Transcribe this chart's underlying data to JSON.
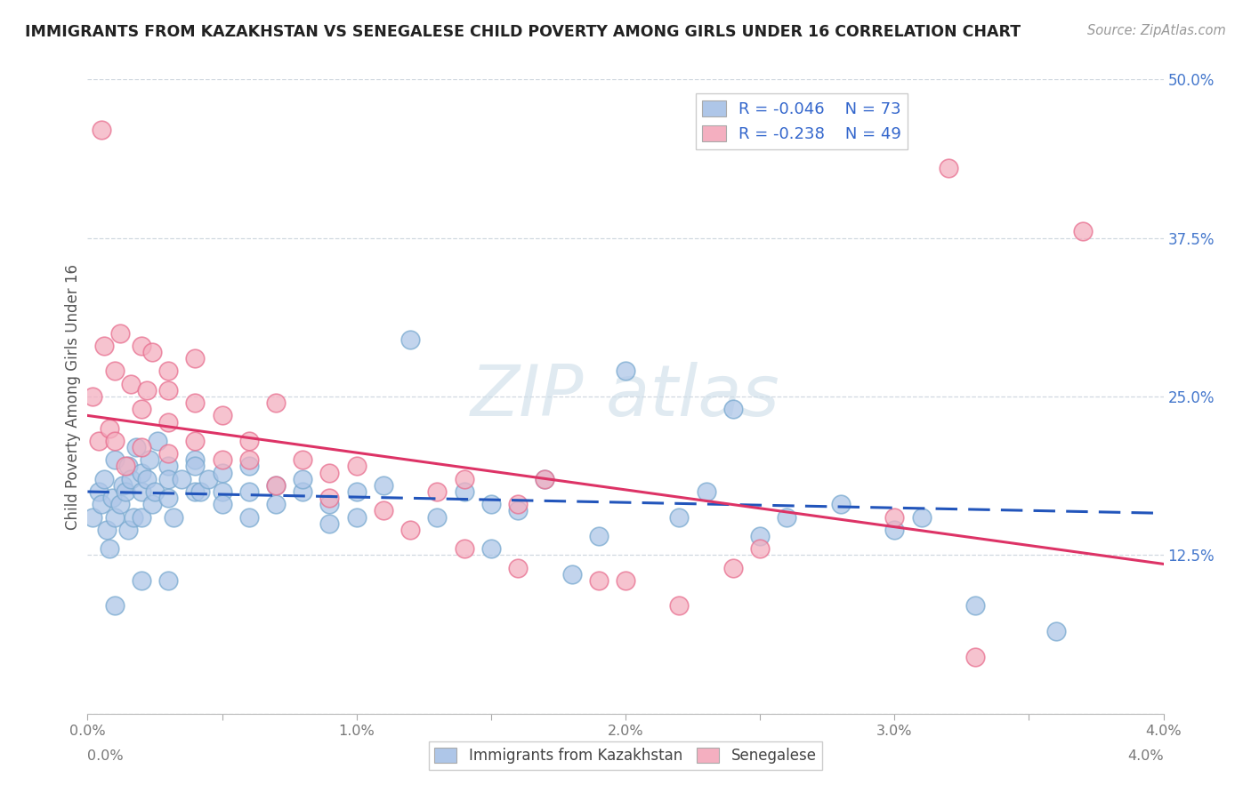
{
  "title": "IMMIGRANTS FROM KAZAKHSTAN VS SENEGALESE CHILD POVERTY AMONG GIRLS UNDER 16 CORRELATION CHART",
  "source": "Source: ZipAtlas.com",
  "ylabel": "Child Poverty Among Girls Under 16",
  "xlabel_blue": "Immigrants from Kazakhstan",
  "xlabel_pink": "Senegalese",
  "xmin": 0.0,
  "xmax": 0.04,
  "ymin": 0.0,
  "ymax": 0.5,
  "yticks": [
    0.0,
    0.125,
    0.25,
    0.375,
    0.5
  ],
  "ytick_labels_right": [
    "",
    "12.5%",
    "25.0%",
    "37.5%",
    "50.0%"
  ],
  "xticks": [
    0.0,
    0.005,
    0.01,
    0.015,
    0.02,
    0.025,
    0.03,
    0.035,
    0.04
  ],
  "xtick_labels": [
    "0.0%",
    "",
    "1.0%",
    "",
    "2.0%",
    "",
    "3.0%",
    "",
    "4.0%"
  ],
  "blue_R": "-0.046",
  "blue_N": "73",
  "pink_R": "-0.238",
  "pink_N": "49",
  "blue_color": "#aec6e8",
  "pink_color": "#f4afc0",
  "blue_edge_color": "#7aaad0",
  "pink_edge_color": "#e87090",
  "blue_line_color": "#2255bb",
  "pink_line_color": "#dd3366",
  "watermark_color": "#ccdde8",
  "blue_scatter_x": [
    0.0002,
    0.0004,
    0.0005,
    0.0006,
    0.0007,
    0.0008,
    0.0009,
    0.001,
    0.001,
    0.0012,
    0.0013,
    0.0014,
    0.0015,
    0.0015,
    0.0016,
    0.0017,
    0.0018,
    0.002,
    0.002,
    0.002,
    0.0022,
    0.0023,
    0.0024,
    0.0025,
    0.0026,
    0.003,
    0.003,
    0.003,
    0.0032,
    0.0035,
    0.004,
    0.004,
    0.004,
    0.0042,
    0.0045,
    0.005,
    0.005,
    0.005,
    0.006,
    0.006,
    0.006,
    0.007,
    0.007,
    0.008,
    0.008,
    0.009,
    0.009,
    0.01,
    0.01,
    0.011,
    0.012,
    0.013,
    0.014,
    0.015,
    0.015,
    0.016,
    0.017,
    0.018,
    0.019,
    0.02,
    0.022,
    0.023,
    0.024,
    0.025,
    0.026,
    0.028,
    0.03,
    0.031,
    0.033,
    0.036,
    0.001,
    0.002,
    0.003
  ],
  "blue_scatter_y": [
    0.155,
    0.175,
    0.165,
    0.185,
    0.145,
    0.13,
    0.17,
    0.2,
    0.155,
    0.165,
    0.18,
    0.175,
    0.195,
    0.145,
    0.185,
    0.155,
    0.21,
    0.175,
    0.155,
    0.19,
    0.185,
    0.2,
    0.165,
    0.175,
    0.215,
    0.195,
    0.185,
    0.17,
    0.155,
    0.185,
    0.2,
    0.175,
    0.195,
    0.175,
    0.185,
    0.175,
    0.165,
    0.19,
    0.195,
    0.175,
    0.155,
    0.18,
    0.165,
    0.175,
    0.185,
    0.165,
    0.15,
    0.175,
    0.155,
    0.18,
    0.295,
    0.155,
    0.175,
    0.165,
    0.13,
    0.16,
    0.185,
    0.11,
    0.14,
    0.27,
    0.155,
    0.175,
    0.24,
    0.14,
    0.155,
    0.165,
    0.145,
    0.155,
    0.085,
    0.065,
    0.085,
    0.105,
    0.105
  ],
  "pink_scatter_x": [
    0.0002,
    0.0004,
    0.0006,
    0.0008,
    0.001,
    0.001,
    0.0012,
    0.0014,
    0.0016,
    0.002,
    0.002,
    0.002,
    0.0022,
    0.0024,
    0.003,
    0.003,
    0.003,
    0.003,
    0.004,
    0.004,
    0.004,
    0.005,
    0.005,
    0.006,
    0.006,
    0.007,
    0.007,
    0.008,
    0.009,
    0.009,
    0.01,
    0.011,
    0.012,
    0.013,
    0.014,
    0.014,
    0.016,
    0.016,
    0.017,
    0.019,
    0.02,
    0.022,
    0.024,
    0.025,
    0.03,
    0.032,
    0.033,
    0.037,
    0.0005
  ],
  "pink_scatter_y": [
    0.25,
    0.215,
    0.29,
    0.225,
    0.27,
    0.215,
    0.3,
    0.195,
    0.26,
    0.29,
    0.24,
    0.21,
    0.255,
    0.285,
    0.23,
    0.255,
    0.205,
    0.27,
    0.215,
    0.245,
    0.28,
    0.2,
    0.235,
    0.215,
    0.2,
    0.245,
    0.18,
    0.2,
    0.19,
    0.17,
    0.195,
    0.16,
    0.145,
    0.175,
    0.13,
    0.185,
    0.165,
    0.115,
    0.185,
    0.105,
    0.105,
    0.085,
    0.115,
    0.13,
    0.155,
    0.43,
    0.045,
    0.38,
    0.46
  ],
  "blue_trend_x": [
    0.0,
    0.04
  ],
  "blue_trend_y": [
    0.175,
    0.158
  ],
  "pink_trend_x": [
    0.0,
    0.04
  ],
  "pink_trend_y": [
    0.235,
    0.118
  ],
  "background_color": "#ffffff",
  "grid_color": "#d0d8e0"
}
